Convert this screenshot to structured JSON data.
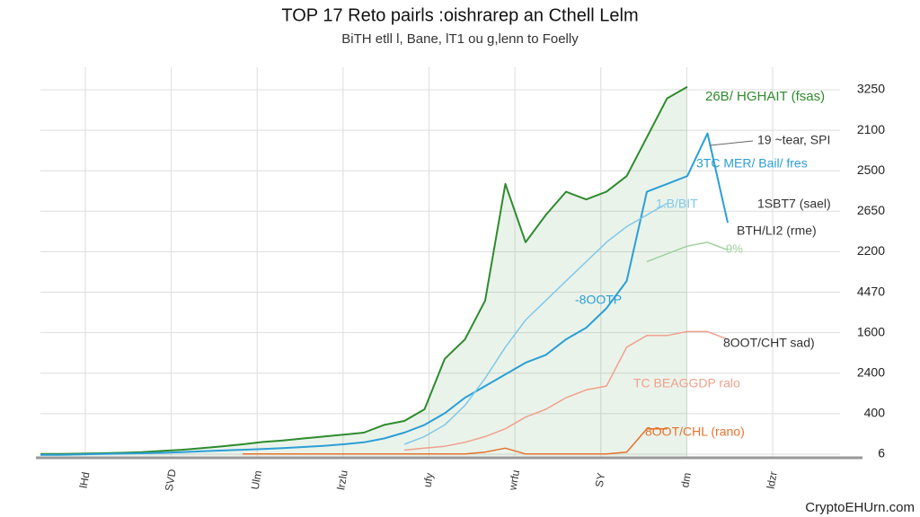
{
  "chart_data": {
    "type": "line",
    "title": "TOP 17 Reto pairls :oishrarep an Cthell Lelm",
    "subtitle": "BiTH etll l, Bane, lT1 ou g,lenn to Foelly",
    "x_labels": [
      "lHd",
      "SVD",
      "Ulm",
      "lrzlu",
      "ufy",
      "wrfu",
      "SY",
      "dm",
      "ldzr"
    ],
    "right_axis_labels": [
      "3250",
      "2100",
      "2500",
      "2650",
      "2200",
      "4470",
      "1600",
      "2400",
      "400",
      "6"
    ],
    "footer": "CryptoEHUrn.com",
    "xlim": [
      0,
      40
    ],
    "ylim": [
      0,
      100
    ],
    "grid": true,
    "x": [
      0,
      1,
      2,
      3,
      4,
      5,
      6,
      7,
      8,
      9,
      10,
      11,
      12,
      13,
      14,
      15,
      16,
      17,
      18,
      19,
      20,
      21,
      22,
      23,
      24,
      25,
      26,
      27,
      28,
      29,
      30,
      31,
      32,
      33,
      34
    ],
    "series": [
      {
        "name": "26B/ HGHAIT (fsas)",
        "color": "#2e8b2e",
        "values": [
          0.5,
          0.5,
          0.6,
          0.7,
          0.8,
          1,
          1.3,
          1.6,
          2,
          2.5,
          3,
          3.6,
          4,
          4.5,
          5,
          5.5,
          6,
          8,
          9,
          12,
          25,
          30,
          40,
          70,
          55,
          62,
          68,
          66,
          68,
          72,
          82,
          92,
          95,
          null,
          null
        ]
      },
      {
        "name": "3TC MER/ Bail/ fres",
        "color": "#2b9fd6",
        "values": [
          0.3,
          0.3,
          0.4,
          0.5,
          0.6,
          0.7,
          0.8,
          1,
          1.2,
          1.4,
          1.6,
          1.8,
          2,
          2.3,
          2.6,
          3,
          3.5,
          4.5,
          6,
          8,
          11,
          15,
          18,
          21,
          24,
          26,
          30,
          33,
          38,
          45,
          68,
          70,
          72,
          83,
          60
        ]
      },
      {
        "name": "1.B/BIT",
        "color": "#7fc8ea",
        "values": [
          null,
          null,
          null,
          null,
          null,
          null,
          null,
          null,
          null,
          null,
          null,
          null,
          null,
          null,
          null,
          null,
          null,
          null,
          3,
          5,
          8,
          13,
          20,
          28,
          35,
          40,
          45,
          50,
          55,
          59,
          62,
          65,
          null,
          null,
          null
        ]
      },
      {
        "name": "9%",
        "color": "#9fd19f",
        "values": [
          null,
          null,
          null,
          null,
          null,
          null,
          null,
          null,
          null,
          null,
          null,
          null,
          null,
          null,
          null,
          null,
          null,
          null,
          null,
          null,
          null,
          null,
          null,
          null,
          null,
          null,
          null,
          null,
          null,
          null,
          50,
          52,
          54,
          55,
          53
        ]
      },
      {
        "name": "TC BEAGGDP ralo",
        "color": "#f0a08c",
        "values": [
          null,
          null,
          null,
          null,
          null,
          null,
          null,
          null,
          null,
          null,
          null,
          null,
          null,
          null,
          null,
          null,
          null,
          null,
          1.5,
          2,
          2.5,
          3.5,
          5,
          7,
          10,
          12,
          15,
          17,
          18,
          28,
          31,
          31,
          32,
          32,
          30
        ]
      },
      {
        "name": "8OOT/CHL (rano)",
        "color": "#e4722c",
        "values": [
          null,
          null,
          null,
          null,
          null,
          null,
          null,
          null,
          null,
          null,
          0.5,
          0.5,
          0.5,
          0.5,
          0.5,
          0.5,
          0.5,
          0.5,
          0.5,
          0.5,
          0.5,
          0.5,
          1,
          2,
          0.5,
          0.5,
          0.5,
          0.5,
          0.5,
          1,
          7,
          7,
          null,
          null,
          null
        ]
      }
    ],
    "annotations": [
      "19 ~tear, SPI",
      "1SBT7 (sael)",
      "BTH/LI2 (rme)",
      "-8OOTP",
      "8OOT/CHT sad)"
    ]
  }
}
